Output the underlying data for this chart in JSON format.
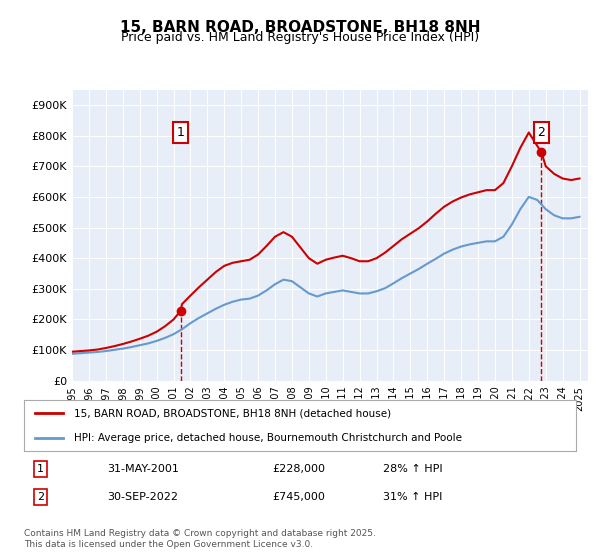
{
  "title": "15, BARN ROAD, BROADSTONE, BH18 8NH",
  "subtitle": "Price paid vs. HM Land Registry's House Price Index (HPI)",
  "legend_line1": "15, BARN ROAD, BROADSTONE, BH18 8NH (detached house)",
  "legend_line2": "HPI: Average price, detached house, Bournemouth Christchurch and Poole",
  "annotation1_label": "1",
  "annotation1_date": "31-MAY-2001",
  "annotation1_price": "£228,000",
  "annotation1_hpi": "28% ↑ HPI",
  "annotation2_label": "2",
  "annotation2_date": "30-SEP-2022",
  "annotation2_price": "£745,000",
  "annotation2_hpi": "31% ↑ HPI",
  "footer": "Contains HM Land Registry data © Crown copyright and database right 2025.\nThis data is licensed under the Open Government Licence v3.0.",
  "price_color": "#cc0000",
  "hpi_color": "#6699cc",
  "annotation_box_color": "#cc0000",
  "background_color": "#e8eef8",
  "ylim": [
    0,
    950000
  ],
  "yticks": [
    0,
    100000,
    200000,
    300000,
    400000,
    500000,
    600000,
    700000,
    800000,
    900000
  ],
  "price_paid_dates": [
    2001.42,
    2022.75
  ],
  "price_paid_values": [
    228000,
    745000
  ],
  "hpi_x": [
    1995,
    1995.5,
    1996,
    1996.5,
    1997,
    1997.5,
    1998,
    1998.5,
    1999,
    1999.5,
    2000,
    2000.5,
    2001,
    2001.5,
    2002,
    2002.5,
    2003,
    2003.5,
    2004,
    2004.5,
    2005,
    2005.5,
    2006,
    2006.5,
    2007,
    2007.5,
    2008,
    2008.5,
    2009,
    2009.5,
    2010,
    2010.5,
    2011,
    2011.5,
    2012,
    2012.5,
    2013,
    2013.5,
    2014,
    2014.5,
    2015,
    2015.5,
    2016,
    2016.5,
    2017,
    2017.5,
    2018,
    2018.5,
    2019,
    2019.5,
    2020,
    2020.5,
    2021,
    2021.5,
    2022,
    2022.5,
    2023,
    2023.5,
    2024,
    2024.5,
    2025
  ],
  "hpi_y": [
    88000,
    90000,
    92000,
    94000,
    97000,
    101000,
    105000,
    110000,
    116000,
    122000,
    130000,
    140000,
    152000,
    168000,
    188000,
    205000,
    220000,
    235000,
    248000,
    258000,
    265000,
    268000,
    278000,
    295000,
    315000,
    330000,
    325000,
    305000,
    285000,
    275000,
    285000,
    290000,
    295000,
    290000,
    285000,
    285000,
    292000,
    302000,
    318000,
    335000,
    350000,
    365000,
    382000,
    398000,
    415000,
    428000,
    438000,
    445000,
    450000,
    455000,
    455000,
    470000,
    510000,
    560000,
    600000,
    590000,
    560000,
    540000,
    530000,
    530000,
    535000
  ],
  "property_x": [
    1995,
    1995.5,
    1996,
    1996.5,
    1997,
    1997.5,
    1998,
    1998.5,
    1999,
    1999.5,
    2000,
    2000.5,
    2001,
    2001.42,
    2001.5,
    2002,
    2002.5,
    2003,
    2003.5,
    2004,
    2004.5,
    2005,
    2005.5,
    2006,
    2006.5,
    2007,
    2007.5,
    2008,
    2008.5,
    2009,
    2009.5,
    2010,
    2010.5,
    2011,
    2011.5,
    2012,
    2012.5,
    2013,
    2013.5,
    2014,
    2014.5,
    2015,
    2015.5,
    2016,
    2016.5,
    2017,
    2017.5,
    2018,
    2018.5,
    2019,
    2019.5,
    2020,
    2020.5,
    2021,
    2021.5,
    2022,
    2022.75,
    2023,
    2023.5,
    2024,
    2024.5,
    2025
  ],
  "property_y": [
    95000,
    97000,
    99000,
    102000,
    107000,
    113000,
    120000,
    128000,
    137000,
    147000,
    160000,
    178000,
    200000,
    228000,
    250000,
    278000,
    305000,
    330000,
    355000,
    375000,
    385000,
    390000,
    395000,
    412000,
    440000,
    470000,
    485000,
    470000,
    435000,
    400000,
    382000,
    395000,
    402000,
    408000,
    400000,
    390000,
    390000,
    400000,
    418000,
    440000,
    462000,
    480000,
    498000,
    520000,
    545000,
    568000,
    585000,
    598000,
    608000,
    615000,
    622000,
    622000,
    645000,
    700000,
    760000,
    810000,
    745000,
    700000,
    675000,
    660000,
    655000,
    660000
  ]
}
